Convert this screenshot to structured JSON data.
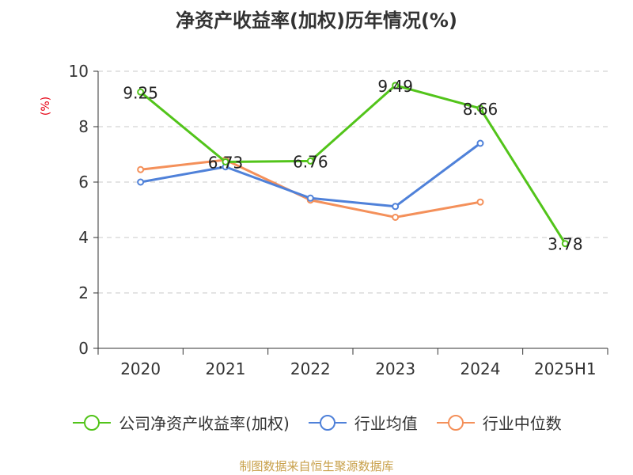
{
  "title": "净资产收益率(加权)历年情况(%)",
  "unit_label": "(%)",
  "source": "制图数据来自恒生聚源数据库",
  "chart_data": {
    "type": "line",
    "title": "净资产收益率(加权)历年情况(%)",
    "ylabel": "(%)",
    "categories": [
      "2020",
      "2021",
      "2022",
      "2023",
      "2024",
      "2025H1"
    ],
    "ylim": [
      0,
      10
    ],
    "yticks": [
      0,
      2,
      4,
      6,
      8,
      10
    ],
    "grid": true,
    "legend_position": "bottom",
    "series": [
      {
        "name": "公司净资产收益率(加权)",
        "color": "#52c41a",
        "values": [
          9.25,
          6.73,
          6.76,
          9.49,
          8.66,
          3.78
        ],
        "labels": [
          "9.25",
          "6.73",
          "6.76",
          "9.49",
          "8.66",
          "3.78"
        ]
      },
      {
        "name": "行业均值",
        "color": "#4f81d9",
        "values": [
          6.0,
          6.55,
          5.42,
          5.12,
          7.4,
          null
        ]
      },
      {
        "name": "行业中位数",
        "color": "#f4905a",
        "values": [
          6.45,
          6.8,
          5.35,
          4.73,
          5.28,
          null
        ]
      }
    ]
  }
}
